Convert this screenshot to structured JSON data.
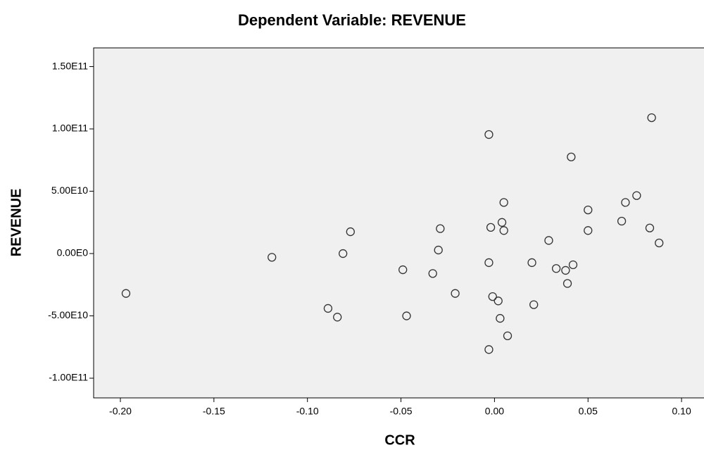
{
  "chart_data": {
    "type": "scatter",
    "title": "Dependent Variable: REVENUE",
    "x_label": "CCR",
    "y_label": "REVENUE",
    "marker_color": "#333333",
    "plot_background": "#f0f0f0",
    "xlim": [
      -0.2143,
      0.112
    ],
    "ylim": [
      -115800000000,
      165000000000
    ],
    "xticks": [
      {
        "value": -0.2,
        "label": "-0.20"
      },
      -0.15,
      {
        "value": -0.1,
        "label": "-0.10"
      },
      -0.05,
      {
        "value": 0,
        "label": "0.00"
      },
      0.05,
      {
        "value": 0.1,
        "label": "0.10"
      }
    ],
    "yticks": [
      {
        "value": -100000000000,
        "label": "-1.00E11"
      },
      {
        "value": -50000000000,
        "label": "-5.00E10"
      },
      {
        "value": 0,
        "label": "0.00E0"
      },
      {
        "value": 50000000000,
        "label": "5.00E10"
      },
      {
        "value": 100000000000,
        "label": "1.00E11"
      },
      {
        "value": 150000000000,
        "label": "1.50E11"
      }
    ],
    "x": [
      -0.197,
      -0.119,
      -0.089,
      -0.084,
      -0.081,
      -0.077,
      -0.049,
      -0.047,
      -0.033,
      -0.03,
      -0.029,
      -0.021,
      -0.003,
      -0.003,
      -0.003,
      -0.002,
      -0.001,
      0.002,
      0.003,
      0.004,
      0.005,
      0.005,
      0.007,
      0.02,
      0.021,
      0.029,
      0.033,
      0.038,
      0.039,
      0.041,
      0.042,
      0.05,
      0.05,
      0.068,
      0.07,
      0.076,
      0.083,
      0.084,
      0.088
    ],
    "y": [
      -32000000000,
      -3000000000,
      -44000000000,
      -51000000000,
      0,
      17500000000,
      -13000000000,
      -50000000000,
      -16000000000,
      2800000000,
      20000000000,
      -32000000000,
      95500000000,
      -7300000000,
      -77000000000,
      21000000000,
      -34500000000,
      -38000000000,
      -52000000000,
      25000000000,
      18500000000,
      41000000000,
      -66000000000,
      -7300000000,
      -41000000000,
      10500000000,
      -12000000000,
      -13500000000,
      -24000000000,
      77500000000,
      -9000000000,
      35000000000,
      18500000000,
      26000000000,
      41000000000,
      46500000000,
      20500000000,
      109000000000,
      8500000000
    ]
  }
}
